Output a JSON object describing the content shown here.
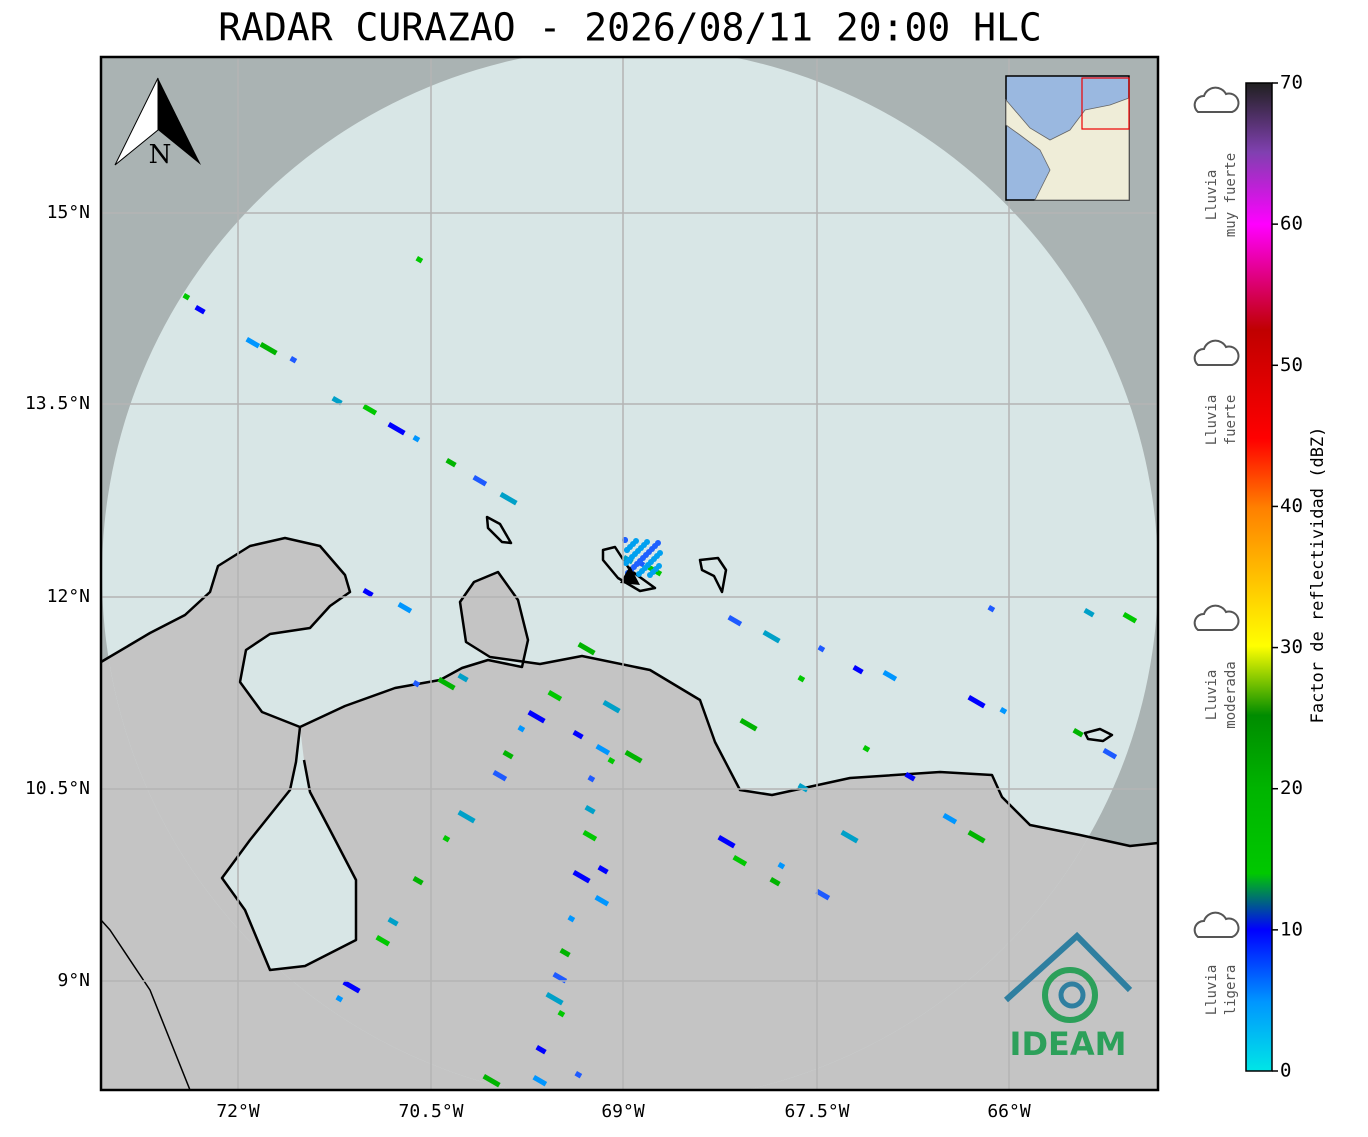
{
  "title": "RADAR CURAZAO - 2026/08/11 20:00 HLC",
  "map": {
    "lat_labels": [
      "15°N",
      "13.5°N",
      "12°N",
      "10.5°N",
      "9°N"
    ],
    "lon_labels": [
      "72°W",
      "70.5°W",
      "69°W",
      "67.5°W",
      "66°W"
    ],
    "north": "N",
    "logo": "IDEAM"
  },
  "legend": {
    "categories": [
      [
        "Lluvia",
        "muy fuerte"
      ],
      [
        "Lluvia",
        "fuerte"
      ],
      [
        "Lluvia",
        "moderada"
      ],
      [
        "Lluvia",
        "ligera"
      ]
    ]
  },
  "colorbar": {
    "label": "Factor de reflectividad (dBZ)",
    "range": [
      0,
      70
    ],
    "ticks": [
      0,
      10,
      20,
      30,
      40,
      50,
      60,
      70
    ]
  }
}
